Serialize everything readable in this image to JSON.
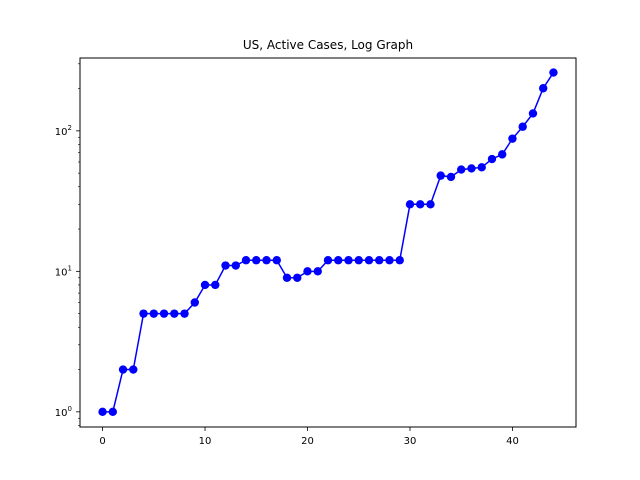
{
  "chart_data": {
    "type": "line",
    "title": "US, Active Cases, Log Graph",
    "xlabel": "",
    "ylabel": "",
    "yscale": "log",
    "xlim": [
      -2.2,
      46.2
    ],
    "ylim": [
      0.78,
      330
    ],
    "xticks": [
      0,
      10,
      20,
      30,
      40
    ],
    "yticks": [
      {
        "value": 1,
        "base": "10",
        "exp": "0"
      },
      {
        "value": 10,
        "base": "10",
        "exp": "1"
      },
      {
        "value": 100,
        "base": "10",
        "exp": "2"
      }
    ],
    "grid": false,
    "series": [
      {
        "color": "#0000ff",
        "marker": "circle",
        "x": [
          0,
          1,
          2,
          3,
          4,
          5,
          6,
          7,
          8,
          9,
          10,
          11,
          12,
          13,
          14,
          15,
          16,
          17,
          18,
          19,
          20,
          21,
          22,
          23,
          24,
          25,
          26,
          27,
          28,
          29,
          30,
          31,
          32,
          33,
          34,
          35,
          36,
          37,
          38,
          39,
          40,
          41,
          42,
          43,
          44
        ],
        "y": [
          1,
          1,
          2,
          2,
          5,
          5,
          5,
          5,
          5,
          6,
          8,
          8,
          11,
          11,
          12,
          12,
          12,
          12,
          9,
          9,
          10,
          10,
          12,
          12,
          12,
          12,
          12,
          12,
          12,
          12,
          30,
          30,
          30,
          48,
          47,
          53,
          54,
          55,
          63,
          68,
          88,
          107,
          133,
          201,
          260
        ]
      }
    ]
  }
}
